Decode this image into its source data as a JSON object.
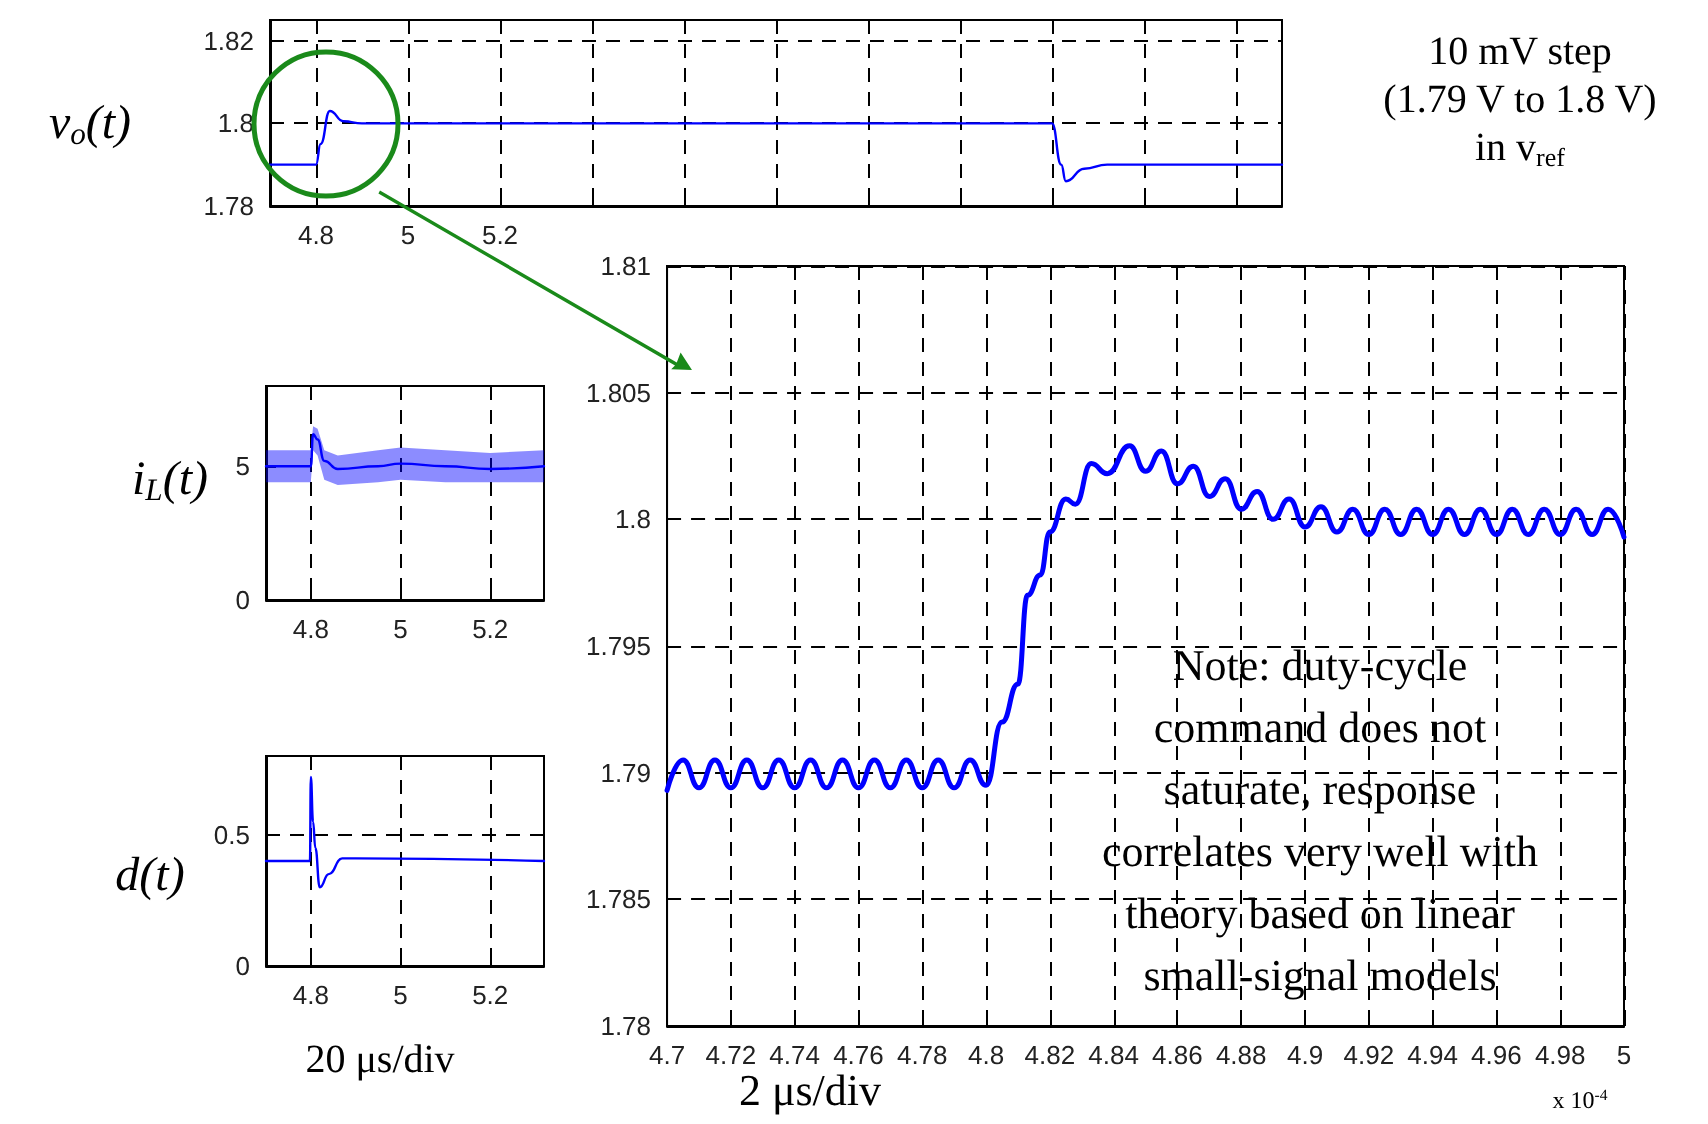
{
  "chart_data": [
    {
      "type": "line",
      "ylabel": "v$_{o}$(t)",
      "annotations": [
        "10 mV step\n(1.79 V to 1.8 V)\nin v$_{ref}$"
      ],
      "xlim": [
        4.7,
        6.9
      ],
      "ylim": [
        1.78,
        1.825
      ],
      "xticks": [
        4.8,
        5,
        5.2,
        {
          "value": 5.4,
          "label": null
        },
        {
          "value": 5.6,
          "label": null
        },
        {
          "value": 5.8,
          "label": null
        },
        {
          "value": 6,
          "label": null
        },
        {
          "value": 6.2,
          "label": null
        },
        {
          "value": 6.4,
          "label": null
        },
        {
          "value": 6.6,
          "label": null
        },
        {
          "value": 6.8,
          "label": null
        }
      ],
      "yticks": [
        1.78,
        1.8,
        1.82
      ],
      "grid": true,
      "marker": "none",
      "line_style": "solid",
      "series": [
        {
          "color": "#0000ff",
          "x": [
            4.7,
            4.8,
            4.81,
            4.83,
            4.86,
            4.9,
            6.4,
            6.42,
            6.43,
            6.47,
            6.52,
            6.9
          ],
          "values": [
            1.79,
            1.79,
            1.795,
            1.803,
            1.8005,
            1.8,
            1.8,
            1.79,
            1.786,
            1.789,
            1.79,
            1.79
          ]
        }
      ]
    },
    {
      "type": "line",
      "ylabel": "i$_{L}$(t)",
      "xlim": [
        4.7,
        5.32
      ],
      "ylim": [
        0,
        8
      ],
      "xticks": [
        4.8,
        5,
        5.2
      ],
      "yticks": [
        0,
        5
      ],
      "grid": "x",
      "marker": "none",
      "line_style": "solid",
      "series": [
        {
          "color": "#0000ff",
          "x": [
            4.7,
            4.8,
            4.805,
            4.815,
            4.83,
            4.86,
            4.95,
            5,
            5.1,
            5.2,
            5.32
          ],
          "values": [
            5,
            5,
            6.2,
            6,
            5.2,
            4.9,
            5,
            5.1,
            5,
            4.9,
            5
          ],
          "lower": [
            4.4,
            4.4,
            5.6,
            5.4,
            4.5,
            4.3,
            4.4,
            4.5,
            4.4,
            4.4,
            4.4
          ],
          "upper": [
            5.6,
            5.6,
            6.5,
            6.4,
            5.6,
            5.4,
            5.6,
            5.7,
            5.6,
            5.5,
            5.6
          ]
        }
      ]
    },
    {
      "type": "line",
      "ylabel": "d(t)",
      "xlabel": "20 μs/div",
      "xlim": [
        4.7,
        5.32
      ],
      "ylim": [
        0,
        0.8
      ],
      "xticks": [
        4.8,
        5,
        5.2
      ],
      "yticks": [
        0,
        0.5
      ],
      "grid": true,
      "marker": "none",
      "line_style": "solid",
      "series": [
        {
          "color": "#0000ff",
          "x": [
            4.7,
            4.798,
            4.8,
            4.805,
            4.81,
            4.82,
            4.84,
            4.87,
            4.9,
            5.32
          ],
          "values": [
            0.4,
            0.4,
            0.72,
            0.55,
            0.45,
            0.3,
            0.35,
            0.41,
            0.41,
            0.4
          ]
        }
      ]
    },
    {
      "type": "line",
      "xlabel": "2 μs/div",
      "annotations": [
        "Note: duty-cycle\ncommand does not\nsaturate, response\ncorrelates very well with\ntheory based on linear\nsmall-signal models",
        "x 10$^{-4}$"
      ],
      "xlim": [
        4.7,
        5
      ],
      "ylim": [
        1.78,
        1.81
      ],
      "xticks": [
        4.7,
        4.72,
        4.74,
        4.76,
        4.78,
        4.8,
        4.82,
        4.84,
        4.86,
        4.88,
        4.9,
        4.92,
        4.94,
        4.96,
        4.98,
        5
      ],
      "yticks": [
        1.78,
        1.785,
        1.79,
        1.795,
        1.8,
        1.805,
        1.81
      ],
      "grid": true,
      "marker": "none",
      "line_style": "solid",
      "series": [
        {
          "color": "#0000ff",
          "x": [
            4.7,
            4.705,
            4.71,
            4.715,
            4.72,
            4.725,
            4.73,
            4.735,
            4.74,
            4.745,
            4.75,
            4.755,
            4.76,
            4.765,
            4.77,
            4.775,
            4.78,
            4.785,
            4.79,
            4.795,
            4.8,
            4.805,
            4.81,
            4.813,
            4.817,
            4.82,
            4.825,
            4.828,
            4.833,
            4.838,
            4.845,
            4.85,
            4.855,
            4.86,
            4.865,
            4.87,
            4.875,
            4.88,
            4.885,
            4.89,
            4.895,
            4.9,
            4.905,
            4.91,
            4.915,
            4.92,
            4.925,
            4.93,
            4.935,
            4.94,
            4.945,
            4.95,
            4.955,
            4.96,
            4.965,
            4.97,
            4.975,
            4.98,
            4.985,
            4.99,
            4.995,
            5
          ],
          "values": [
            1.7893,
            1.7905,
            1.7894,
            1.7905,
            1.7894,
            1.7905,
            1.7894,
            1.7905,
            1.7894,
            1.7905,
            1.7894,
            1.7905,
            1.7894,
            1.7905,
            1.7894,
            1.7905,
            1.7894,
            1.7905,
            1.7894,
            1.7905,
            1.7895,
            1.792,
            1.7935,
            1.797,
            1.7978,
            1.7995,
            1.8008,
            1.8006,
            1.8022,
            1.8018,
            1.8029,
            1.8019,
            1.8027,
            1.8014,
            1.8021,
            1.8009,
            1.8016,
            1.8004,
            1.8011,
            1.8,
            1.8008,
            1.7997,
            1.8005,
            1.7995,
            1.8004,
            1.7994,
            1.8004,
            1.7994,
            1.8004,
            1.7994,
            1.8004,
            1.7994,
            1.8004,
            1.7994,
            1.8004,
            1.7994,
            1.8004,
            1.7994,
            1.8004,
            1.7994,
            1.8004,
            1.7993
          ]
        }
      ]
    }
  ]
}
